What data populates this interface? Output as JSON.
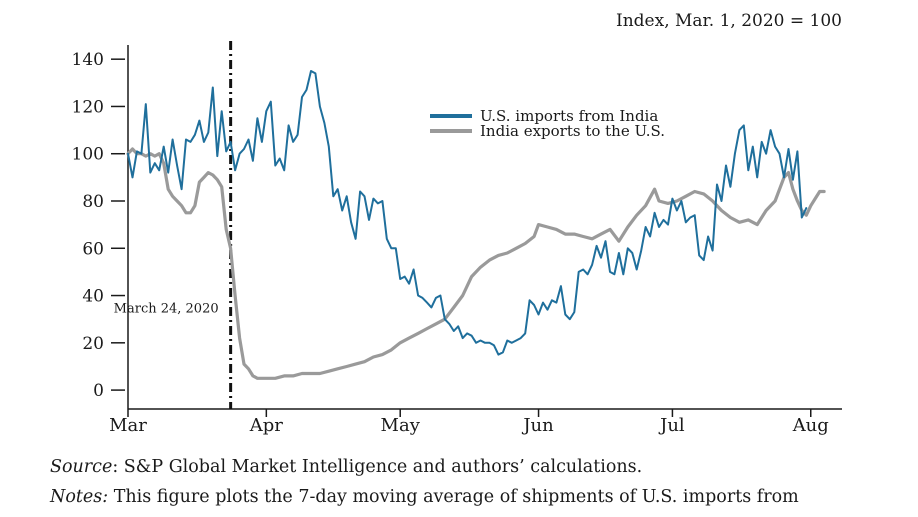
{
  "chart_data": {
    "type": "line",
    "title": "",
    "unit_label": "Index, Mar. 1, 2020 = 100",
    "xlabel": "",
    "ylabel": "",
    "ylim": [
      -8,
      146
    ],
    "yticks": [
      0,
      20,
      40,
      60,
      80,
      100,
      120,
      140
    ],
    "xlim": [
      "2020-03-01",
      "2020-08-08"
    ],
    "xticks": [
      {
        "label": "Mar",
        "date": "2020-03-01"
      },
      {
        "label": "Apr",
        "date": "2020-04-01"
      },
      {
        "label": "May",
        "date": "2020-05-01"
      },
      {
        "label": "Jun",
        "date": "2020-06-01"
      },
      {
        "label": "Jul",
        "date": "2020-07-01"
      },
      {
        "label": "Aug",
        "date": "2020-08-01"
      }
    ],
    "grid": false,
    "legend_position": "upper-center",
    "annotation": {
      "date": "2020-03-24",
      "label": "March 24, 2020"
    },
    "series": [
      {
        "name": "U.S. imports from India",
        "color": "#1f6f9c",
        "points": [
          [
            "2020-03-01",
            100
          ],
          [
            "2020-03-02",
            90
          ],
          [
            "2020-03-03",
            101
          ],
          [
            "2020-03-04",
            100
          ],
          [
            "2020-03-05",
            121
          ],
          [
            "2020-03-06",
            92
          ],
          [
            "2020-03-07",
            96
          ],
          [
            "2020-03-08",
            93
          ],
          [
            "2020-03-09",
            103
          ],
          [
            "2020-03-10",
            92
          ],
          [
            "2020-03-11",
            106
          ],
          [
            "2020-03-12",
            95
          ],
          [
            "2020-03-13",
            85
          ],
          [
            "2020-03-14",
            106
          ],
          [
            "2020-03-15",
            105
          ],
          [
            "2020-03-16",
            108
          ],
          [
            "2020-03-17",
            114
          ],
          [
            "2020-03-18",
            105
          ],
          [
            "2020-03-19",
            109
          ],
          [
            "2020-03-20",
            128
          ],
          [
            "2020-03-21",
            99
          ],
          [
            "2020-03-22",
            118
          ],
          [
            "2020-03-23",
            101
          ],
          [
            "2020-03-24",
            105
          ],
          [
            "2020-03-25",
            93
          ],
          [
            "2020-03-26",
            100
          ],
          [
            "2020-03-27",
            102
          ],
          [
            "2020-03-28",
            106
          ],
          [
            "2020-03-29",
            97
          ],
          [
            "2020-03-30",
            115
          ],
          [
            "2020-03-31",
            105
          ],
          [
            "2020-04-01",
            118
          ],
          [
            "2020-04-02",
            122
          ],
          [
            "2020-04-03",
            95
          ],
          [
            "2020-04-04",
            98
          ],
          [
            "2020-04-05",
            93
          ],
          [
            "2020-04-06",
            112
          ],
          [
            "2020-04-07",
            105
          ],
          [
            "2020-04-08",
            108
          ],
          [
            "2020-04-09",
            124
          ],
          [
            "2020-04-10",
            127
          ],
          [
            "2020-04-11",
            135
          ],
          [
            "2020-04-12",
            134
          ],
          [
            "2020-04-13",
            120
          ],
          [
            "2020-04-14",
            113
          ],
          [
            "2020-04-15",
            103
          ],
          [
            "2020-04-16",
            82
          ],
          [
            "2020-04-17",
            85
          ],
          [
            "2020-04-18",
            76
          ],
          [
            "2020-04-19",
            82
          ],
          [
            "2020-04-20",
            71
          ],
          [
            "2020-04-21",
            64
          ],
          [
            "2020-04-22",
            84
          ],
          [
            "2020-04-23",
            82
          ],
          [
            "2020-04-24",
            72
          ],
          [
            "2020-04-25",
            81
          ],
          [
            "2020-04-26",
            79
          ],
          [
            "2020-04-27",
            80
          ],
          [
            "2020-04-28",
            64
          ],
          [
            "2020-04-29",
            60
          ],
          [
            "2020-04-30",
            60
          ],
          [
            "2020-05-01",
            47
          ],
          [
            "2020-05-02",
            48
          ],
          [
            "2020-05-03",
            45
          ],
          [
            "2020-05-04",
            51
          ],
          [
            "2020-05-05",
            40
          ],
          [
            "2020-05-06",
            39
          ],
          [
            "2020-05-07",
            37
          ],
          [
            "2020-05-08",
            35
          ],
          [
            "2020-05-09",
            39
          ],
          [
            "2020-05-10",
            40
          ],
          [
            "2020-05-11",
            30
          ],
          [
            "2020-05-12",
            28
          ],
          [
            "2020-05-13",
            25
          ],
          [
            "2020-05-14",
            27
          ],
          [
            "2020-05-15",
            22
          ],
          [
            "2020-05-16",
            24
          ],
          [
            "2020-05-17",
            23
          ],
          [
            "2020-05-18",
            20
          ],
          [
            "2020-05-19",
            21
          ],
          [
            "2020-05-20",
            20
          ],
          [
            "2020-05-21",
            20
          ],
          [
            "2020-05-22",
            19
          ],
          [
            "2020-05-23",
            15
          ],
          [
            "2020-05-24",
            16
          ],
          [
            "2020-05-25",
            21
          ],
          [
            "2020-05-26",
            20
          ],
          [
            "2020-05-27",
            21
          ],
          [
            "2020-05-28",
            22
          ],
          [
            "2020-05-29",
            24
          ],
          [
            "2020-05-30",
            38
          ],
          [
            "2020-05-31",
            36
          ],
          [
            "2020-06-01",
            32
          ],
          [
            "2020-06-02",
            37
          ],
          [
            "2020-06-03",
            34
          ],
          [
            "2020-06-04",
            38
          ],
          [
            "2020-06-05",
            37
          ],
          [
            "2020-06-06",
            44
          ],
          [
            "2020-06-07",
            32
          ],
          [
            "2020-06-08",
            30
          ],
          [
            "2020-06-09",
            33
          ],
          [
            "2020-06-10",
            50
          ],
          [
            "2020-06-11",
            51
          ],
          [
            "2020-06-12",
            49
          ],
          [
            "2020-06-13",
            53
          ],
          [
            "2020-06-14",
            61
          ],
          [
            "2020-06-15",
            56
          ],
          [
            "2020-06-16",
            63
          ],
          [
            "2020-06-17",
            50
          ],
          [
            "2020-06-18",
            49
          ],
          [
            "2020-06-19",
            58
          ],
          [
            "2020-06-20",
            49
          ],
          [
            "2020-06-21",
            60
          ],
          [
            "2020-06-22",
            58
          ],
          [
            "2020-06-23",
            51
          ],
          [
            "2020-06-24",
            59
          ],
          [
            "2020-06-25",
            69
          ],
          [
            "2020-06-26",
            65
          ],
          [
            "2020-06-27",
            75
          ],
          [
            "2020-06-28",
            69
          ],
          [
            "2020-06-29",
            72
          ],
          [
            "2020-06-30",
            70
          ],
          [
            "2020-07-01",
            81
          ],
          [
            "2020-07-02",
            76
          ],
          [
            "2020-07-03",
            80
          ],
          [
            "2020-07-04",
            71
          ],
          [
            "2020-07-05",
            73
          ],
          [
            "2020-07-06",
            74
          ],
          [
            "2020-07-07",
            57
          ],
          [
            "2020-07-08",
            55
          ],
          [
            "2020-07-09",
            65
          ],
          [
            "2020-07-10",
            59
          ],
          [
            "2020-07-11",
            87
          ],
          [
            "2020-07-12",
            80
          ],
          [
            "2020-07-13",
            95
          ],
          [
            "2020-07-14",
            86
          ],
          [
            "2020-07-15",
            100
          ],
          [
            "2020-07-16",
            110
          ],
          [
            "2020-07-17",
            112
          ],
          [
            "2020-07-18",
            93
          ],
          [
            "2020-07-19",
            103
          ],
          [
            "2020-07-20",
            90
          ],
          [
            "2020-07-21",
            105
          ],
          [
            "2020-07-22",
            100
          ],
          [
            "2020-07-23",
            110
          ],
          [
            "2020-07-24",
            103
          ],
          [
            "2020-07-25",
            100
          ],
          [
            "2020-07-26",
            90
          ],
          [
            "2020-07-27",
            102
          ],
          [
            "2020-07-28",
            89
          ],
          [
            "2020-07-29",
            101
          ],
          [
            "2020-07-30",
            73
          ],
          [
            "2020-07-31",
            77
          ]
        ]
      },
      {
        "name": "India exports to the U.S.",
        "color": "#9a9a9a",
        "points": [
          [
            "2020-03-01",
            100
          ],
          [
            "2020-03-02",
            102
          ],
          [
            "2020-03-03",
            100
          ],
          [
            "2020-03-04",
            100
          ],
          [
            "2020-03-05",
            99
          ],
          [
            "2020-03-06",
            100
          ],
          [
            "2020-03-07",
            99
          ],
          [
            "2020-03-08",
            100
          ],
          [
            "2020-03-09",
            96
          ],
          [
            "2020-03-10",
            85
          ],
          [
            "2020-03-11",
            82
          ],
          [
            "2020-03-12",
            80
          ],
          [
            "2020-03-13",
            78
          ],
          [
            "2020-03-14",
            75
          ],
          [
            "2020-03-15",
            75
          ],
          [
            "2020-03-16",
            78
          ],
          [
            "2020-03-17",
            88
          ],
          [
            "2020-03-18",
            90
          ],
          [
            "2020-03-19",
            92
          ],
          [
            "2020-03-20",
            91
          ],
          [
            "2020-03-21",
            89
          ],
          [
            "2020-03-22",
            86
          ],
          [
            "2020-03-23",
            68
          ],
          [
            "2020-03-24",
            60
          ],
          [
            "2020-03-25",
            40
          ],
          [
            "2020-03-26",
            22
          ],
          [
            "2020-03-27",
            11
          ],
          [
            "2020-03-28",
            9
          ],
          [
            "2020-03-29",
            6
          ],
          [
            "2020-03-30",
            5
          ],
          [
            "2020-03-31",
            5
          ],
          [
            "2020-04-01",
            5
          ],
          [
            "2020-04-03",
            5
          ],
          [
            "2020-04-05",
            6
          ],
          [
            "2020-04-07",
            6
          ],
          [
            "2020-04-09",
            7
          ],
          [
            "2020-04-11",
            7
          ],
          [
            "2020-04-13",
            7
          ],
          [
            "2020-04-15",
            8
          ],
          [
            "2020-04-17",
            9
          ],
          [
            "2020-04-19",
            10
          ],
          [
            "2020-04-21",
            11
          ],
          [
            "2020-04-23",
            12
          ],
          [
            "2020-04-25",
            14
          ],
          [
            "2020-04-27",
            15
          ],
          [
            "2020-04-29",
            17
          ],
          [
            "2020-05-01",
            20
          ],
          [
            "2020-05-03",
            22
          ],
          [
            "2020-05-05",
            24
          ],
          [
            "2020-05-07",
            26
          ],
          [
            "2020-05-09",
            28
          ],
          [
            "2020-05-11",
            30
          ],
          [
            "2020-05-13",
            35
          ],
          [
            "2020-05-15",
            40
          ],
          [
            "2020-05-17",
            48
          ],
          [
            "2020-05-19",
            52
          ],
          [
            "2020-05-21",
            55
          ],
          [
            "2020-05-23",
            57
          ],
          [
            "2020-05-25",
            58
          ],
          [
            "2020-05-27",
            60
          ],
          [
            "2020-05-29",
            62
          ],
          [
            "2020-05-31",
            65
          ],
          [
            "2020-06-01",
            70
          ],
          [
            "2020-06-03",
            69
          ],
          [
            "2020-06-05",
            68
          ],
          [
            "2020-06-07",
            66
          ],
          [
            "2020-06-09",
            66
          ],
          [
            "2020-06-11",
            65
          ],
          [
            "2020-06-13",
            64
          ],
          [
            "2020-06-15",
            66
          ],
          [
            "2020-06-17",
            68
          ],
          [
            "2020-06-19",
            63
          ],
          [
            "2020-06-21",
            69
          ],
          [
            "2020-06-23",
            74
          ],
          [
            "2020-06-25",
            78
          ],
          [
            "2020-06-27",
            85
          ],
          [
            "2020-06-28",
            80
          ],
          [
            "2020-06-30",
            79
          ],
          [
            "2020-07-02",
            80
          ],
          [
            "2020-07-04",
            82
          ],
          [
            "2020-07-06",
            84
          ],
          [
            "2020-07-08",
            83
          ],
          [
            "2020-07-10",
            80
          ],
          [
            "2020-07-12",
            76
          ],
          [
            "2020-07-14",
            73
          ],
          [
            "2020-07-16",
            71
          ],
          [
            "2020-07-18",
            72
          ],
          [
            "2020-07-20",
            70
          ],
          [
            "2020-07-22",
            76
          ],
          [
            "2020-07-24",
            80
          ],
          [
            "2020-07-26",
            90
          ],
          [
            "2020-07-27",
            92
          ],
          [
            "2020-07-28",
            85
          ],
          [
            "2020-07-29",
            80
          ],
          [
            "2020-07-30",
            76
          ],
          [
            "2020-07-31",
            74
          ],
          [
            "2020-08-01",
            78
          ],
          [
            "2020-08-02",
            81
          ],
          [
            "2020-08-03",
            84
          ],
          [
            "2020-08-04",
            84
          ]
        ]
      }
    ]
  },
  "captions": {
    "source_label": "Source",
    "source_text": ": S&P Global Market Intelligence and authors’ calculations.",
    "notes_label": "Notes:",
    "notes_text": " This figure plots the 7-day moving average of shipments of U.S. imports from"
  }
}
